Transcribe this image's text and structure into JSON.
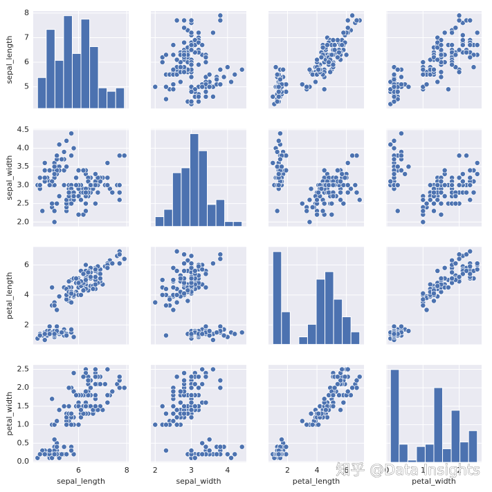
{
  "chart_data": {
    "type": "pairplot",
    "color": "#4c72b0",
    "grid": true,
    "watermark": "知乎 @Data Insights",
    "variables": [
      {
        "name": "sepal_length",
        "lim": [
          4.12,
          8.08
        ],
        "xticks": [
          6,
          8
        ],
        "yticks": [
          5,
          6,
          7,
          8
        ],
        "values": [
          5.1,
          4.9,
          4.7,
          4.6,
          5.0,
          5.4,
          4.6,
          5.0,
          4.4,
          4.9,
          5.4,
          4.8,
          4.8,
          4.3,
          5.8,
          5.7,
          5.4,
          5.1,
          5.7,
          5.1,
          5.4,
          5.1,
          4.6,
          5.1,
          4.8,
          5.0,
          5.0,
          5.2,
          5.2,
          4.7,
          4.8,
          5.4,
          5.2,
          5.5,
          4.9,
          5.0,
          5.5,
          4.9,
          4.4,
          5.1,
          5.0,
          4.5,
          4.4,
          5.0,
          5.1,
          4.8,
          5.1,
          4.6,
          5.3,
          5.0,
          7.0,
          6.4,
          6.9,
          5.5,
          6.5,
          5.7,
          6.3,
          4.9,
          6.6,
          5.2,
          5.0,
          5.9,
          6.0,
          6.1,
          5.6,
          6.7,
          5.6,
          5.8,
          6.2,
          5.6,
          5.9,
          6.1,
          6.3,
          6.1,
          6.4,
          6.6,
          6.8,
          6.7,
          6.0,
          5.7,
          5.5,
          5.5,
          5.8,
          6.0,
          5.4,
          6.0,
          6.7,
          6.3,
          5.6,
          5.5,
          5.5,
          6.1,
          5.8,
          5.0,
          5.6,
          5.7,
          5.7,
          6.2,
          5.1,
          5.7,
          6.3,
          5.8,
          7.1,
          6.3,
          6.5,
          7.6,
          4.9,
          7.3,
          6.7,
          7.2,
          6.5,
          6.4,
          6.8,
          5.7,
          5.8,
          6.4,
          6.5,
          7.7,
          7.7,
          6.0,
          6.9,
          5.6,
          7.7,
          6.3,
          6.7,
          7.2,
          6.2,
          6.1,
          6.4,
          7.2,
          7.4,
          7.9,
          6.4,
          6.3,
          6.1,
          7.7,
          6.3,
          6.4,
          6.0,
          6.9,
          6.7,
          6.9,
          5.8,
          6.8,
          6.7,
          6.7,
          6.3,
          6.5,
          6.2,
          5.9
        ],
        "hist": {
          "bins": [
            4.3,
            4.66,
            5.02,
            5.38,
            5.74,
            6.1,
            6.46,
            6.82,
            7.18,
            7.54,
            7.9
          ],
          "counts": [
            9,
            23,
            14,
            27,
            16,
            26,
            18,
            6,
            5,
            6
          ],
          "ylim": [
            0,
            28.35
          ]
        }
      },
      {
        "name": "sepal_width",
        "lim": [
          1.88,
          4.52
        ],
        "xticks": [
          2,
          3,
          4
        ],
        "yticks": [
          {
            "value": 2,
            "label": "2.0"
          },
          2.5,
          {
            "value": 3,
            "label": "3.0"
          },
          3.5,
          {
            "value": 4,
            "label": "4.0"
          },
          4.5
        ],
        "values": [
          3.5,
          3.0,
          3.2,
          3.1,
          3.6,
          3.9,
          3.4,
          3.4,
          2.9,
          3.1,
          3.7,
          3.4,
          3.0,
          3.0,
          4.0,
          4.4,
          3.9,
          3.5,
          3.8,
          3.8,
          3.4,
          3.7,
          3.6,
          3.3,
          3.4,
          3.0,
          3.4,
          3.5,
          3.4,
          3.2,
          3.1,
          3.4,
          4.1,
          4.2,
          3.1,
          3.2,
          3.5,
          3.1,
          3.0,
          3.4,
          3.5,
          2.3,
          3.2,
          3.5,
          3.8,
          3.0,
          3.8,
          3.2,
          3.7,
          3.3,
          3.2,
          3.2,
          3.1,
          2.3,
          2.8,
          2.8,
          3.3,
          2.4,
          2.9,
          2.7,
          2.0,
          3.0,
          2.2,
          2.9,
          2.9,
          3.1,
          3.0,
          2.7,
          2.2,
          2.5,
          3.2,
          2.8,
          2.5,
          2.8,
          2.9,
          3.0,
          2.8,
          3.0,
          2.9,
          2.6,
          2.4,
          2.4,
          2.7,
          2.7,
          3.0,
          3.4,
          3.1,
          2.3,
          3.0,
          2.5,
          2.6,
          3.0,
          2.6,
          2.3,
          2.7,
          3.0,
          2.9,
          2.9,
          2.5,
          2.8,
          3.3,
          2.7,
          3.0,
          2.9,
          3.0,
          3.0,
          2.5,
          2.9,
          2.5,
          3.6,
          3.2,
          2.7,
          3.0,
          2.5,
          2.8,
          3.2,
          3.0,
          3.8,
          2.6,
          2.2,
          3.2,
          2.8,
          2.8,
          2.7,
          3.3,
          3.2,
          2.8,
          3.0,
          2.8,
          3.0,
          2.8,
          3.8,
          2.8,
          2.8,
          2.6,
          3.0,
          3.4,
          3.1,
          3.0,
          3.1,
          3.1,
          3.1,
          2.7,
          3.2,
          3.3,
          3.0,
          2.5,
          3.0,
          3.4,
          3.0
        ],
        "hist": {
          "bins": [
            2.0,
            2.24,
            2.48,
            2.72,
            2.96,
            3.2,
            3.44,
            3.68,
            3.92,
            4.16,
            4.4
          ],
          "counts": [
            4,
            7,
            22,
            24,
            38,
            31,
            9,
            11,
            2,
            2
          ],
          "ylim": [
            0,
            39.9
          ]
        }
      },
      {
        "name": "petal_length",
        "lim": [
          0.705,
          7.195
        ],
        "xticks": [
          2,
          4,
          6
        ],
        "yticks": [
          2,
          4,
          6
        ],
        "values": [
          1.4,
          1.4,
          1.3,
          1.5,
          1.4,
          1.7,
          1.4,
          1.5,
          1.4,
          1.5,
          1.5,
          1.6,
          1.4,
          1.1,
          1.2,
          1.5,
          1.3,
          1.4,
          1.7,
          1.5,
          1.7,
          1.5,
          1.0,
          1.7,
          1.9,
          1.6,
          1.6,
          1.5,
          1.4,
          1.6,
          1.6,
          1.5,
          1.5,
          1.4,
          1.5,
          1.2,
          1.3,
          1.5,
          1.3,
          1.5,
          1.3,
          1.3,
          1.3,
          1.6,
          1.9,
          1.4,
          1.6,
          1.4,
          1.5,
          1.4,
          4.7,
          4.5,
          4.9,
          4.0,
          4.6,
          4.5,
          4.7,
          3.3,
          4.6,
          3.9,
          3.5,
          4.2,
          4.0,
          4.7,
          3.6,
          4.4,
          4.5,
          4.1,
          4.5,
          3.9,
          4.8,
          4.0,
          4.9,
          4.7,
          4.3,
          4.4,
          4.8,
          5.0,
          4.5,
          3.5,
          3.8,
          3.7,
          3.9,
          5.1,
          4.5,
          4.5,
          4.7,
          4.4,
          4.1,
          4.0,
          4.4,
          4.6,
          4.0,
          3.3,
          4.2,
          4.2,
          4.2,
          4.3,
          3.0,
          4.1,
          6.0,
          5.1,
          5.9,
          5.6,
          5.8,
          6.6,
          4.5,
          6.3,
          5.8,
          6.1,
          5.1,
          5.3,
          5.5,
          5.0,
          5.1,
          5.3,
          5.5,
          6.7,
          6.9,
          5.0,
          5.7,
          4.9,
          6.7,
          4.9,
          5.7,
          6.0,
          4.8,
          4.9,
          5.6,
          5.8,
          6.1,
          6.4,
          5.6,
          5.1,
          5.6,
          6.1,
          5.6,
          5.5,
          4.8,
          5.4,
          5.6,
          5.1,
          5.1,
          5.9,
          5.7,
          5.2,
          5.0,
          5.2,
          5.4,
          5.1
        ],
        "hist": {
          "bins": [
            1.0,
            1.59,
            2.18,
            2.77,
            3.36,
            3.95,
            4.54,
            5.13,
            5.72,
            6.31,
            6.9
          ],
          "counts": [
            37,
            13,
            0,
            3,
            8,
            26,
            29,
            18,
            11,
            5
          ],
          "ylim": [
            0,
            38.85
          ]
        }
      },
      {
        "name": "petal_width",
        "lim": [
          -0.02,
          2.62
        ],
        "xticks": [
          0,
          1,
          2
        ],
        "yticks": [
          {
            "value": 0,
            "label": "0.0"
          },
          0.5,
          {
            "value": 1,
            "label": "1.0"
          },
          1.5,
          {
            "value": 2,
            "label": "2.0"
          },
          2.5
        ],
        "values": [
          0.2,
          0.2,
          0.2,
          0.2,
          0.2,
          0.4,
          0.3,
          0.2,
          0.2,
          0.1,
          0.2,
          0.2,
          0.1,
          0.1,
          0.2,
          0.4,
          0.4,
          0.3,
          0.3,
          0.3,
          0.2,
          0.4,
          0.2,
          0.5,
          0.2,
          0.2,
          0.4,
          0.2,
          0.2,
          0.2,
          0.2,
          0.4,
          0.1,
          0.2,
          0.1,
          0.2,
          0.2,
          0.1,
          0.2,
          0.2,
          0.3,
          0.3,
          0.2,
          0.6,
          0.4,
          0.3,
          0.2,
          0.2,
          0.2,
          0.2,
          1.4,
          1.5,
          1.5,
          1.3,
          1.5,
          1.3,
          1.6,
          1.0,
          1.3,
          1.4,
          1.0,
          1.5,
          1.0,
          1.4,
          1.3,
          1.4,
          1.5,
          1.0,
          1.5,
          1.1,
          1.8,
          1.3,
          1.5,
          1.2,
          1.3,
          1.4,
          1.4,
          1.7,
          1.5,
          1.0,
          1.1,
          1.0,
          1.2,
          1.6,
          1.5,
          1.6,
          1.5,
          1.3,
          1.3,
          1.3,
          1.2,
          1.4,
          1.2,
          1.0,
          1.3,
          1.2,
          1.3,
          1.3,
          1.1,
          1.3,
          2.5,
          1.9,
          2.1,
          1.8,
          2.2,
          2.1,
          1.7,
          1.8,
          1.8,
          2.5,
          2.0,
          1.9,
          2.1,
          2.0,
          2.4,
          2.3,
          1.8,
          2.2,
          2.3,
          1.5,
          2.3,
          2.0,
          2.0,
          1.8,
          2.1,
          1.8,
          1.8,
          1.8,
          2.1,
          1.6,
          1.9,
          2.0,
          2.2,
          1.5,
          1.4,
          2.3,
          2.4,
          1.8,
          1.8,
          2.1,
          2.4,
          2.3,
          1.9,
          2.3,
          2.5,
          2.3,
          1.9,
          2.0,
          2.3,
          1.8
        ],
        "hist": {
          "bins": [
            0.1,
            0.34,
            0.58,
            0.82,
            1.06,
            1.3,
            1.54,
            1.78,
            2.02,
            2.26,
            2.5
          ],
          "counts": [
            41,
            8,
            1,
            7,
            8,
            33,
            6,
            23,
            9,
            14
          ],
          "ylim": [
            0,
            43.05
          ]
        }
      }
    ]
  }
}
